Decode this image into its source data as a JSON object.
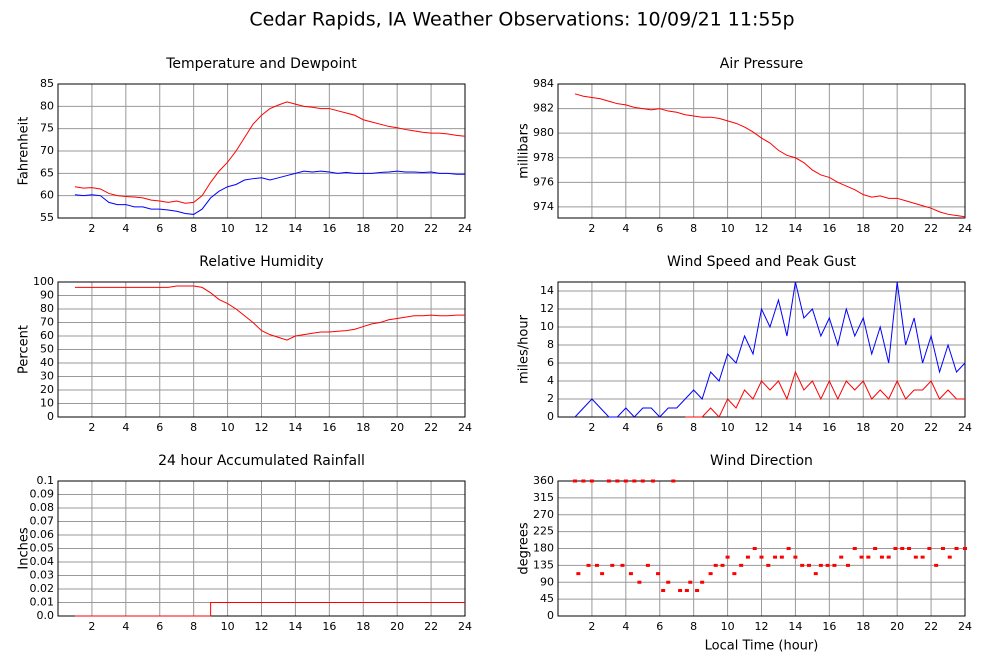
{
  "title": "Cedar Rapids, IA Weather Observations: 10/09/21 11:55p",
  "chart_data": [
    {
      "type": "line",
      "title": "Temperature and Dewpoint",
      "ylabel": "Fahrenheit",
      "xlim": [
        0,
        24
      ],
      "xticks": [
        2,
        4,
        6,
        8,
        10,
        12,
        14,
        16,
        18,
        20,
        22,
        24
      ],
      "ylim": [
        55,
        85
      ],
      "yticks": [
        55,
        60,
        65,
        70,
        75,
        80,
        85
      ],
      "grid": true,
      "x": [
        1,
        1.5,
        2,
        2.5,
        3,
        3.5,
        4,
        4.5,
        5,
        5.5,
        6,
        6.5,
        7,
        7.5,
        8,
        8.5,
        9,
        9.5,
        10,
        10.5,
        11,
        11.5,
        12,
        12.5,
        13,
        13.5,
        14,
        14.5,
        15,
        15.5,
        16,
        16.5,
        17,
        17.5,
        18,
        18.5,
        19,
        19.5,
        20,
        20.5,
        21,
        21.5,
        22,
        22.5,
        23,
        23.5,
        24
      ],
      "series": [
        {
          "color": "#ff0000",
          "values": [
            62,
            61.7,
            61.8,
            61.5,
            60.5,
            60,
            59.8,
            59.7,
            59.5,
            59,
            58.8,
            58.5,
            58.8,
            58.3,
            58.5,
            60,
            63,
            65.5,
            67.5,
            70,
            73,
            76,
            78,
            79.5,
            80.3,
            81,
            80.5,
            80,
            79.8,
            79.5,
            79.5,
            79,
            78.5,
            78,
            77,
            76.5,
            76,
            75.5,
            75.2,
            74.8,
            74.5,
            74.2,
            74,
            74,
            73.8,
            73.5,
            73.3
          ]
        },
        {
          "color": "#0000ff",
          "values": [
            60.2,
            60,
            60.2,
            60,
            58.5,
            58,
            58,
            57.5,
            57.5,
            57,
            57,
            56.8,
            56.5,
            56,
            55.8,
            57,
            59.5,
            61,
            62,
            62.5,
            63.5,
            63.8,
            64,
            63.5,
            64,
            64.5,
            65,
            65.5,
            65.3,
            65.5,
            65.3,
            65,
            65.2,
            65,
            65,
            65,
            65.2,
            65.3,
            65.5,
            65.3,
            65.3,
            65.2,
            65.3,
            65,
            65,
            64.8,
            64.8
          ]
        }
      ]
    },
    {
      "type": "line",
      "title": "Air Pressure",
      "ylabel": "millibars",
      "xlim": [
        0,
        24
      ],
      "xticks": [
        2,
        4,
        6,
        8,
        10,
        12,
        14,
        16,
        18,
        20,
        22,
        24
      ],
      "ylim": [
        973.1,
        984
      ],
      "yticks": [
        974,
        976,
        978,
        980,
        982,
        984
      ],
      "grid": true,
      "x": [
        1,
        1.5,
        2,
        2.5,
        3,
        3.5,
        4,
        4.5,
        5,
        5.5,
        6,
        6.5,
        7,
        7.5,
        8,
        8.5,
        9,
        9.5,
        10,
        10.5,
        11,
        11.5,
        12,
        12.5,
        13,
        13.5,
        14,
        14.5,
        15,
        15.5,
        16,
        16.5,
        17,
        17.5,
        18,
        18.5,
        19,
        19.5,
        20,
        20.5,
        21,
        21.5,
        22,
        22.5,
        23,
        23.5,
        24
      ],
      "series": [
        {
          "color": "#ff0000",
          "values": [
            983.2,
            983,
            982.9,
            982.8,
            982.6,
            982.4,
            982.3,
            982.1,
            982,
            981.9,
            982,
            981.8,
            981.7,
            981.5,
            981.4,
            981.3,
            981.3,
            981.2,
            981,
            980.8,
            980.5,
            980.1,
            979.6,
            979.2,
            978.6,
            978.2,
            978,
            977.6,
            977,
            976.6,
            976.4,
            976,
            975.7,
            975.4,
            975,
            974.8,
            974.9,
            974.7,
            974.7,
            974.5,
            974.3,
            974.1,
            973.9,
            973.6,
            973.4,
            973.3,
            973.2
          ]
        }
      ]
    },
    {
      "type": "line",
      "title": "Relative Humidity",
      "ylabel": "Percent",
      "xlim": [
        0,
        24
      ],
      "xticks": [
        2,
        4,
        6,
        8,
        10,
        12,
        14,
        16,
        18,
        20,
        22,
        24
      ],
      "ylim": [
        0,
        100
      ],
      "yticks": [
        0,
        10,
        20,
        30,
        40,
        50,
        60,
        70,
        80,
        90,
        100
      ],
      "grid": true,
      "x": [
        1,
        1.5,
        2,
        2.5,
        3,
        3.5,
        4,
        4.5,
        5,
        5.5,
        6,
        6.5,
        7,
        7.5,
        8,
        8.5,
        9,
        9.5,
        10,
        10.5,
        11,
        11.5,
        12,
        12.5,
        13,
        13.5,
        14,
        14.5,
        15,
        15.5,
        16,
        16.5,
        17,
        17.5,
        18,
        18.5,
        19,
        19.5,
        20,
        20.5,
        21,
        21.5,
        22,
        22.5,
        23,
        23.5,
        24
      ],
      "series": [
        {
          "color": "#ff0000",
          "values": [
            96,
            96,
            96,
            96,
            96,
            96,
            96,
            96,
            96,
            96,
            96,
            96,
            97,
            97,
            97,
            96,
            92,
            87,
            84,
            80,
            75,
            70,
            64,
            61,
            59,
            57,
            60,
            61,
            62,
            63,
            63,
            63.5,
            64,
            65,
            67,
            69,
            70,
            72,
            73,
            74,
            75,
            75,
            75.5,
            75,
            75,
            75.5,
            75.5
          ]
        }
      ]
    },
    {
      "type": "line",
      "title": "Wind Speed and Peak Gust",
      "ylabel": "miles/hour",
      "xlim": [
        0,
        24
      ],
      "xticks": [
        2,
        4,
        6,
        8,
        10,
        12,
        14,
        16,
        18,
        20,
        22,
        24
      ],
      "ylim": [
        0,
        15
      ],
      "yticks": [
        0,
        2,
        4,
        6,
        8,
        10,
        12,
        14
      ],
      "grid": true,
      "x": [
        1,
        1.5,
        2,
        2.5,
        3,
        3.5,
        4,
        4.5,
        5,
        5.5,
        6,
        6.5,
        7,
        7.5,
        8,
        8.5,
        9,
        9.5,
        10,
        10.5,
        11,
        11.5,
        12,
        12.5,
        13,
        13.5,
        14,
        14.5,
        15,
        15.5,
        16,
        16.5,
        17,
        17.5,
        18,
        18.5,
        19,
        19.5,
        20,
        20.5,
        21,
        21.5,
        22,
        22.5,
        23,
        23.5,
        24
      ],
      "series": [
        {
          "color": "#0000ff",
          "values": [
            0,
            1,
            2,
            1,
            0,
            0,
            1,
            0,
            1,
            1,
            0,
            1,
            1,
            2,
            3,
            2,
            5,
            4,
            7,
            6,
            9,
            7,
            12,
            10,
            13,
            9,
            15,
            11,
            12,
            9,
            11,
            8,
            12,
            9,
            11,
            7,
            10,
            6,
            15,
            8,
            11,
            6,
            9,
            5,
            8,
            5,
            6
          ]
        },
        {
          "color": "#ff0000",
          "values": [
            null,
            null,
            null,
            null,
            null,
            null,
            null,
            null,
            null,
            null,
            null,
            null,
            null,
            0,
            0,
            0,
            1,
            0,
            2,
            1,
            3,
            2,
            4,
            3,
            4,
            2,
            5,
            3,
            4,
            2,
            4,
            2,
            4,
            3,
            4,
            2,
            3,
            2,
            4,
            2,
            3,
            3,
            4,
            2,
            3,
            2,
            2
          ]
        }
      ]
    },
    {
      "type": "line",
      "title": "24 hour Accumulated Rainfall",
      "ylabel": "Inches",
      "xlim": [
        0,
        24
      ],
      "xticks": [
        2,
        4,
        6,
        8,
        10,
        12,
        14,
        16,
        18,
        20,
        22,
        24
      ],
      "ylim": [
        0,
        0.1
      ],
      "yticks": [
        {
          "value": 0,
          "label": "0.0"
        },
        0.01,
        0.02,
        0.03,
        0.04,
        0.05,
        0.06,
        0.07,
        0.08,
        0.09,
        {
          "value": 0.1,
          "label": "0.1"
        }
      ],
      "grid": true,
      "x": [
        1,
        9,
        9,
        24
      ],
      "series": [
        {
          "color": "#ff0000",
          "values": [
            0,
            0,
            0.01,
            0.01
          ]
        }
      ]
    },
    {
      "type": "scatter",
      "title": "Wind Direction",
      "ylabel": "degrees",
      "xlabel": "Local Time (hour)",
      "xlim": [
        0,
        24
      ],
      "xticks": [
        2,
        4,
        6,
        8,
        10,
        12,
        14,
        16,
        18,
        20,
        22,
        24
      ],
      "ylim": [
        0,
        360
      ],
      "yticks": [
        0,
        45,
        90,
        135,
        180,
        225,
        270,
        315,
        360
      ],
      "grid": true,
      "color": "#ff0000",
      "x": [
        1,
        1.2,
        1.5,
        1.8,
        2,
        2.3,
        2.6,
        3,
        3.2,
        3.5,
        3.8,
        4,
        4.3,
        4.5,
        4.8,
        5,
        5.3,
        5.6,
        5.9,
        6.2,
        6.5,
        6.8,
        7.2,
        7.6,
        7.8,
        8.2,
        8.5,
        9,
        9.3,
        9.7,
        10,
        10.4,
        10.8,
        11.2,
        11.6,
        12,
        12.4,
        12.8,
        13.2,
        13.6,
        14,
        14.4,
        14.8,
        15.2,
        15.5,
        15.9,
        16.3,
        16.7,
        17.1,
        17.5,
        17.9,
        18.3,
        18.7,
        19.1,
        19.5,
        19.9,
        20.3,
        20.7,
        21.1,
        21.5,
        21.9,
        22.3,
        22.7,
        23.1,
        23.5,
        24
      ],
      "values": [
        360,
        113,
        360,
        135,
        360,
        135,
        113,
        360,
        135,
        360,
        135,
        360,
        113,
        360,
        90,
        360,
        135,
        360,
        113,
        68,
        90,
        360,
        68,
        68,
        90,
        68,
        90,
        113,
        135,
        135,
        157,
        113,
        135,
        157,
        180,
        157,
        135,
        157,
        157,
        180,
        157,
        135,
        135,
        113,
        135,
        135,
        135,
        157,
        135,
        180,
        157,
        157,
        180,
        157,
        157,
        180,
        180,
        180,
        157,
        157,
        180,
        135,
        180,
        157,
        180,
        180
      ]
    }
  ]
}
